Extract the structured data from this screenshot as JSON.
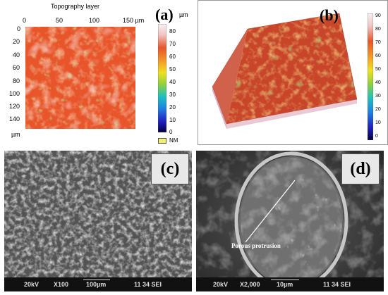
{
  "panel_a": {
    "label": "(a)",
    "title": "Topography layer",
    "unit": "µm",
    "x_ticks": [
      "0",
      "50",
      "100",
      "150 µm"
    ],
    "y_ticks": [
      "0",
      "20",
      "40",
      "60",
      "80",
      "100",
      "120",
      "140"
    ],
    "y_axis_unit": "µm",
    "colorbar_ticks": [
      "80",
      "70",
      "60",
      "50",
      "40",
      "30",
      "20",
      "10",
      "0"
    ],
    "nm_label": "NM"
  },
  "panel_b": {
    "label": "(b)",
    "colorbar_ticks": [
      "90",
      "80",
      "70",
      "60",
      "50",
      "40",
      "30",
      "20",
      "10",
      "0"
    ]
  },
  "panel_c": {
    "label": "(c)",
    "voltage": "20kV",
    "magnification": "X100",
    "scale": "100µm",
    "info": "11 34 SEI"
  },
  "panel_d": {
    "label": "(d)",
    "annotation": "Porous protrusion",
    "voltage": "20kV",
    "magnification": "X2,000",
    "scale": "10µm",
    "info": "11 34 SEI"
  },
  "colors": {
    "topo_base": "#e8552a",
    "topo_mid": "#f29a2a",
    "topo_high": "#f3c8c8",
    "topo_green": "#7cc44a",
    "sem_gray": "#555555"
  }
}
